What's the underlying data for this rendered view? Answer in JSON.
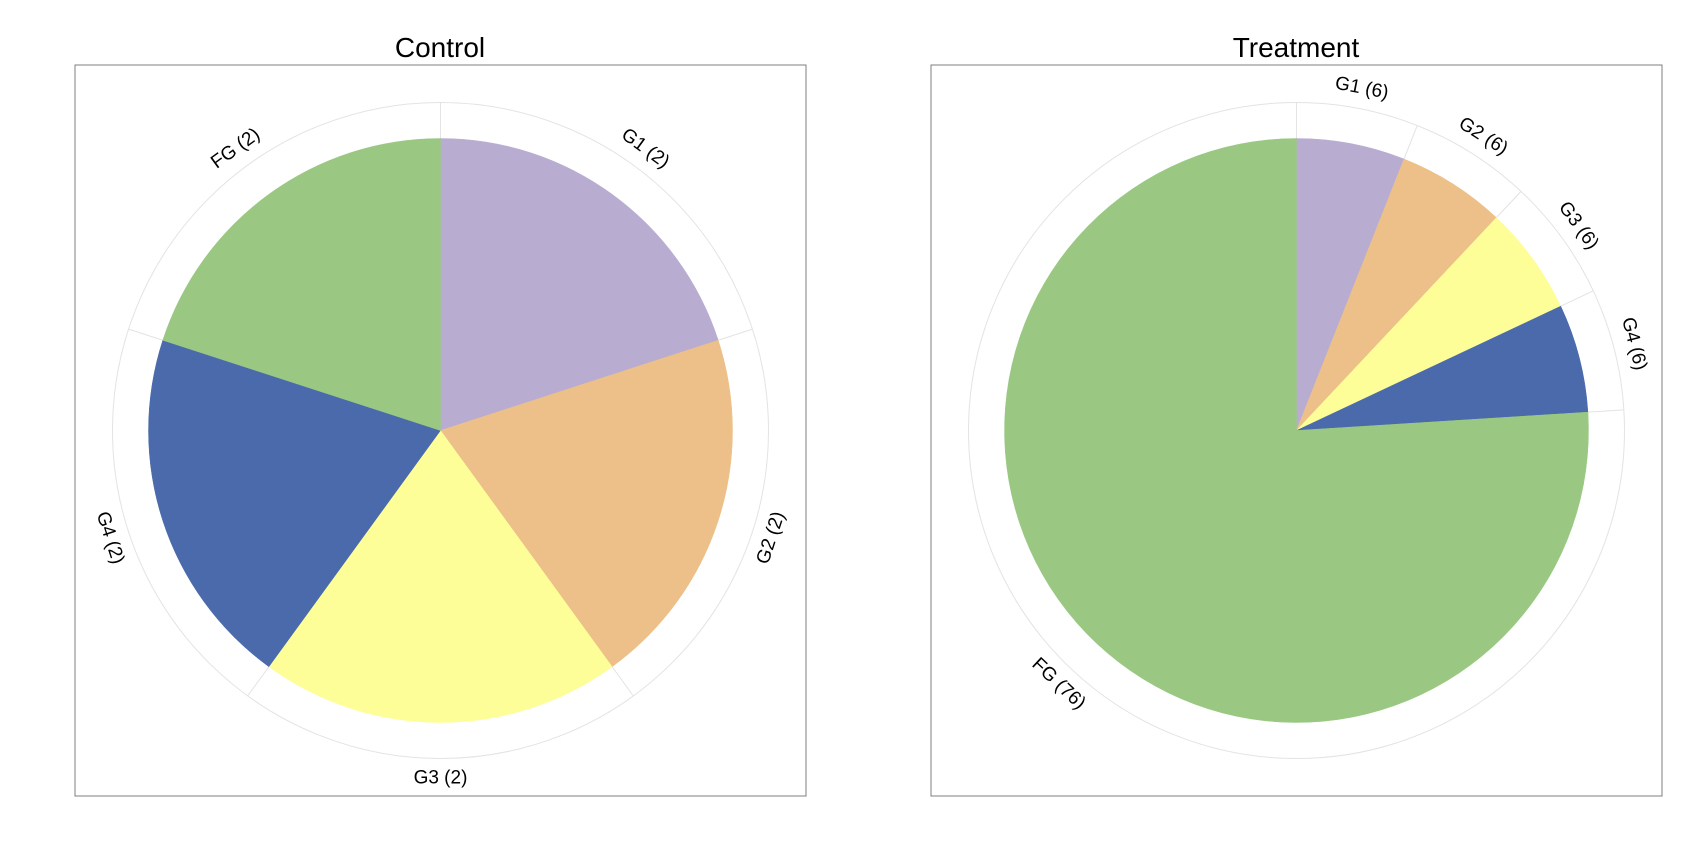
{
  "chart_data": [
    {
      "type": "pie",
      "title": "Control",
      "slices": [
        {
          "name": "G1",
          "value": 2,
          "label": "G1 (2)",
          "color": "#b8acd1"
        },
        {
          "name": "G2",
          "value": 2,
          "label": "G2 (2)",
          "color": "#ecc088"
        },
        {
          "name": "G3",
          "value": 2,
          "label": "G3 (2)",
          "color": "#fefe98"
        },
        {
          "name": "G4",
          "value": 2,
          "label": "G4 (2)",
          "color": "#4b6aab"
        },
        {
          "name": "FG",
          "value": 2,
          "label": "FG (2)",
          "color": "#9ac882"
        }
      ],
      "start": "12 o'clock",
      "direction": "clockwise",
      "legend": "none"
    },
    {
      "type": "pie",
      "title": "Treatment",
      "slices": [
        {
          "name": "G1",
          "value": 6,
          "label": "G1 (6)",
          "color": "#b8acd1"
        },
        {
          "name": "G2",
          "value": 6,
          "label": "G2 (6)",
          "color": "#ecc088"
        },
        {
          "name": "G3",
          "value": 6,
          "label": "G3 (6)",
          "color": "#fefe98"
        },
        {
          "name": "G4",
          "value": 6,
          "label": "G4 (6)",
          "color": "#4b6aab"
        },
        {
          "name": "FG",
          "value": 76,
          "label": "FG (76)",
          "color": "#9ac882"
        }
      ],
      "start": "12 o'clock",
      "direction": "clockwise",
      "legend": "none"
    }
  ]
}
